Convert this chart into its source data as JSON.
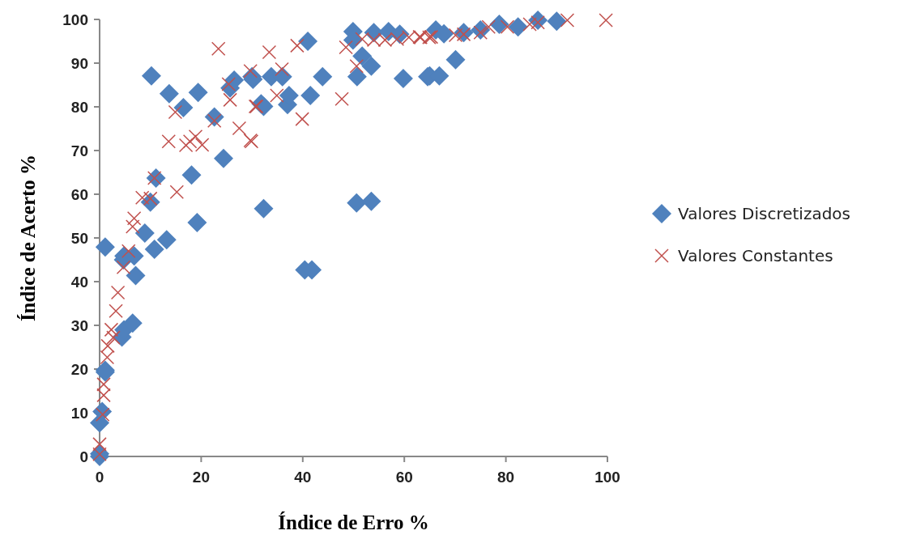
{
  "chart_data": {
    "type": "scatter",
    "xlabel": "Índice de Erro %",
    "ylabel": "Índice de Acerto %",
    "xlim": [
      0,
      100
    ],
    "ylim": [
      0,
      100
    ],
    "xticks": [
      0,
      20,
      40,
      60,
      80,
      100
    ],
    "yticks": [
      0,
      10,
      20,
      30,
      40,
      50,
      60,
      70,
      80,
      90,
      100
    ],
    "grid": false,
    "legend": "right",
    "series": [
      {
        "name": "Valores Discretizados",
        "color": "#4f81bd",
        "marker": "diamond",
        "x": [
          0,
          0,
          0,
          0.5,
          1.1,
          1.1,
          1.1,
          4.4,
          4.8,
          6.5,
          7.1,
          4.7,
          4.8,
          6.8,
          8.9,
          10.8,
          13.2,
          10,
          11.1,
          10.2,
          13.7,
          16.5,
          19.4,
          18.1,
          19.2,
          22.6,
          24.4,
          25.7,
          26.5,
          30.2,
          31.8,
          30,
          32.3,
          33.8,
          36,
          37,
          37.3,
          41.5,
          43.9,
          32.3,
          40.4,
          41.8,
          41,
          49.9,
          49.9,
          50.7,
          51.7,
          53.5,
          50.6,
          53.5,
          54,
          56.9,
          59.1,
          59.8,
          64.6,
          65,
          66.9,
          70.1,
          66.2,
          67.8,
          71.7,
          75,
          78.7,
          82.4,
          86.3,
          90
        ],
        "values": [
          0,
          0.6,
          7.7,
          10.3,
          19.7,
          47.9,
          19.3,
          27.3,
          29,
          30.5,
          41.4,
          45,
          45.9,
          45.9,
          51.1,
          47.4,
          49.6,
          58.2,
          63.7,
          87.1,
          83,
          79.8,
          83.3,
          64.4,
          53.5,
          77.7,
          68.2,
          84.3,
          86.1,
          86.3,
          80.7,
          86.9,
          80.1,
          86.9,
          86.9,
          80.5,
          82.6,
          82.6,
          86.9,
          56.7,
          42.7,
          42.7,
          95,
          97.2,
          95.3,
          86.9,
          91.6,
          89.3,
          58,
          58.4,
          97,
          97.2,
          96.6,
          86.5,
          86.9,
          87.1,
          87.1,
          90.8,
          97.6,
          96.7,
          97,
          97.6,
          98.9,
          98.3,
          99.8,
          99.6
        ]
      },
      {
        "name": "Valores Constantes",
        "color": "#c0504d",
        "marker": "cross",
        "x": [
          0,
          0,
          0.6,
          0.8,
          0.8,
          1.5,
          1.6,
          2.3,
          2.7,
          3.2,
          3.6,
          4.7,
          5.7,
          6.5,
          6.8,
          8.4,
          10,
          10.8,
          15.2,
          13.6,
          14.9,
          17,
          17.8,
          18.9,
          20.2,
          22.6,
          23.4,
          25.4,
          25.7,
          27.5,
          29.7,
          29.9,
          30.7,
          29.7,
          30.9,
          33.4,
          34.9,
          35.9,
          38.9,
          39.9,
          47.7,
          48.5,
          50.6,
          51.7,
          54,
          56.2,
          58.6,
          60.9,
          63,
          63.2,
          64.9,
          65.3,
          70.1,
          71.7,
          75,
          76.6,
          80.3,
          84.7,
          86.3,
          92.1,
          99.7
        ],
        "values": [
          0.5,
          2.8,
          9.6,
          14,
          16.5,
          22.7,
          25.3,
          29,
          27.2,
          33.3,
          37.5,
          43.3,
          47,
          52.6,
          54.5,
          59.2,
          59,
          63.7,
          60.5,
          72.1,
          78.8,
          71.2,
          72.1,
          73.2,
          71.3,
          76.8,
          93.3,
          85.2,
          81.6,
          75.1,
          88.2,
          72.1,
          80.1,
          72.3,
          80.1,
          92.5,
          82.6,
          88.6,
          94,
          77.2,
          81.8,
          93.6,
          89.3,
          95.5,
          95.3,
          95.3,
          95.5,
          95.9,
          96,
          95.9,
          95.9,
          96,
          96.4,
          96.6,
          97,
          98.3,
          98.3,
          98.9,
          99.3,
          99.8,
          99.8
        ]
      }
    ]
  }
}
